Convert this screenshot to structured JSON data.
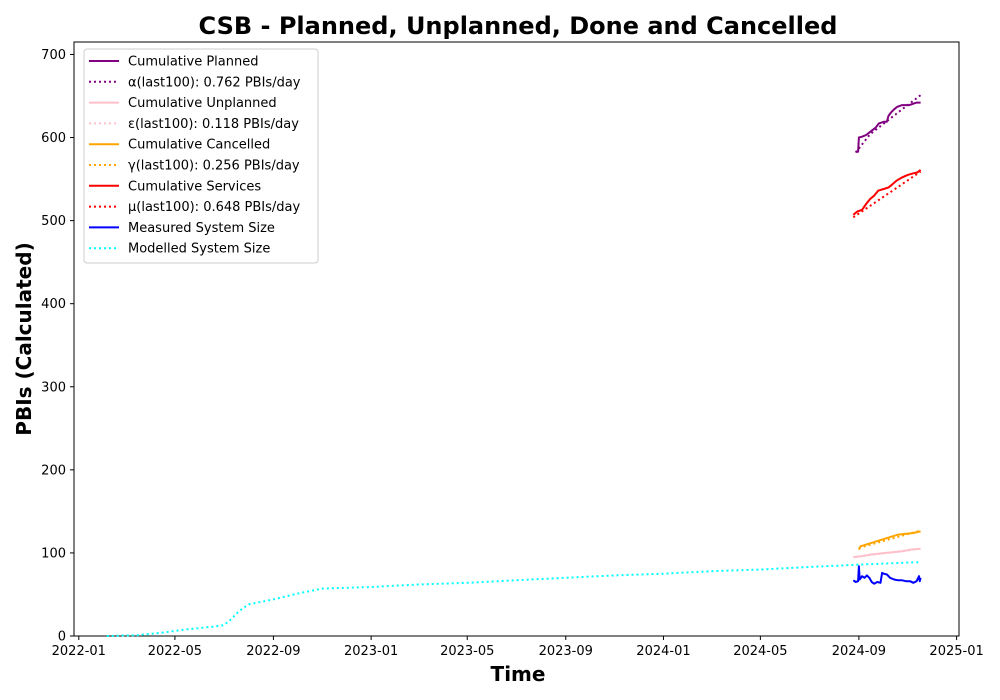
{
  "chart_data": {
    "type": "line",
    "title": "CSB - Planned, Unplanned, Done  and Cancelled",
    "xlabel": "Time",
    "ylabel": "PBIs (Calculated)",
    "x_axis": {
      "kind": "date",
      "range": [
        "2021-12-26",
        "2025-01-04"
      ],
      "ticks": [
        "2022-01",
        "2022-05",
        "2022-09",
        "2023-01",
        "2023-05",
        "2023-09",
        "2024-01",
        "2024-05",
        "2024-09",
        "2025-01"
      ]
    },
    "y_axis": {
      "range": [
        0,
        715
      ],
      "ticks": [
        0,
        100,
        200,
        300,
        400,
        500,
        600,
        700
      ]
    },
    "grid": false,
    "legend_position": "top-left",
    "series": [
      {
        "name": "Cumulative Planned",
        "color": "#800080",
        "style": "solid",
        "points": [
          [
            "2024-08-28",
            583
          ],
          [
            "2024-08-31",
            583
          ],
          [
            "2024-09-01",
            600
          ],
          [
            "2024-09-05",
            601
          ],
          [
            "2024-09-10",
            603
          ],
          [
            "2024-09-14",
            606
          ],
          [
            "2024-09-18",
            609
          ],
          [
            "2024-09-22",
            612
          ],
          [
            "2024-09-26",
            617
          ],
          [
            "2024-10-02",
            619
          ],
          [
            "2024-10-06",
            619
          ],
          [
            "2024-10-08",
            626
          ],
          [
            "2024-10-11",
            630
          ],
          [
            "2024-10-15",
            634
          ],
          [
            "2024-10-19",
            637
          ],
          [
            "2024-10-25",
            639
          ],
          [
            "2024-11-03",
            639
          ],
          [
            "2024-11-12",
            642
          ],
          [
            "2024-11-17",
            642
          ]
        ]
      },
      {
        "name": "α(last100): 0.762 PBIs/day",
        "color": "#800080",
        "style": "dotted",
        "points": [
          [
            "2024-08-28",
            582
          ],
          [
            "2024-09-15",
            604
          ],
          [
            "2024-10-05",
            619
          ],
          [
            "2024-10-25",
            634
          ],
          [
            "2024-11-17",
            651
          ]
        ]
      },
      {
        "name": "Cumulative Unplanned",
        "color": "#ffc0cb",
        "style": "solid",
        "points": [
          [
            "2024-08-25",
            95
          ],
          [
            "2024-09-05",
            96
          ],
          [
            "2024-09-15",
            98
          ],
          [
            "2024-09-25",
            99
          ],
          [
            "2024-10-05",
            100
          ],
          [
            "2024-10-15",
            101
          ],
          [
            "2024-10-25",
            102
          ],
          [
            "2024-11-05",
            104
          ],
          [
            "2024-11-17",
            105
          ]
        ]
      },
      {
        "name": "ε(last100): 0.118 PBIs/day",
        "color": "#ffc0cb",
        "style": "dotted",
        "points": [
          [
            "2024-08-25",
            95
          ],
          [
            "2024-11-17",
            105
          ]
        ]
      },
      {
        "name": "Cumulative Cancelled",
        "color": "#ffa500",
        "style": "solid",
        "points": [
          [
            "2024-09-01",
            104
          ],
          [
            "2024-09-03",
            108
          ],
          [
            "2024-09-10",
            110
          ],
          [
            "2024-09-20",
            113
          ],
          [
            "2024-09-30",
            116
          ],
          [
            "2024-10-10",
            119
          ],
          [
            "2024-10-20",
            122
          ],
          [
            "2024-10-30",
            123
          ],
          [
            "2024-11-08",
            124
          ],
          [
            "2024-11-17",
            126
          ]
        ]
      },
      {
        "name": "γ(last100): 0.256 PBIs/day",
        "color": "#ffa500",
        "style": "dotted",
        "points": [
          [
            "2024-09-01",
            106
          ],
          [
            "2024-11-17",
            127
          ]
        ]
      },
      {
        "name": "Cumulative Services",
        "color": "#ff0000",
        "style": "solid",
        "points": [
          [
            "2024-08-25",
            507
          ],
          [
            "2024-08-30",
            511
          ],
          [
            "2024-09-05",
            513
          ],
          [
            "2024-09-10",
            520
          ],
          [
            "2024-09-15",
            526
          ],
          [
            "2024-09-20",
            530
          ],
          [
            "2024-09-25",
            536
          ],
          [
            "2024-10-02",
            538
          ],
          [
            "2024-10-08",
            540
          ],
          [
            "2024-10-12",
            543
          ],
          [
            "2024-10-18",
            548
          ],
          [
            "2024-10-25",
            552
          ],
          [
            "2024-11-01",
            555
          ],
          [
            "2024-11-08",
            557
          ],
          [
            "2024-11-13",
            558
          ],
          [
            "2024-11-17",
            561
          ]
        ]
      },
      {
        "name": "μ(last100): 0.648 PBIs/day",
        "color": "#ff0000",
        "style": "dotted",
        "points": [
          [
            "2024-08-25",
            504
          ],
          [
            "2024-11-17",
            559
          ]
        ]
      },
      {
        "name": "Measured System Size",
        "color": "#0000ff",
        "style": "solid",
        "points": [
          [
            "2024-08-25",
            67
          ],
          [
            "2024-08-28",
            65
          ],
          [
            "2024-08-31",
            66
          ],
          [
            "2024-09-01",
            84
          ],
          [
            "2024-09-02",
            68
          ],
          [
            "2024-09-05",
            72
          ],
          [
            "2024-09-08",
            70
          ],
          [
            "2024-09-11",
            73
          ],
          [
            "2024-09-14",
            70
          ],
          [
            "2024-09-17",
            65
          ],
          [
            "2024-09-20",
            63
          ],
          [
            "2024-09-24",
            65
          ],
          [
            "2024-09-28",
            64
          ],
          [
            "2024-09-30",
            76
          ],
          [
            "2024-10-02",
            75
          ],
          [
            "2024-10-06",
            74
          ],
          [
            "2024-10-10",
            70
          ],
          [
            "2024-10-15",
            68
          ],
          [
            "2024-10-20",
            67
          ],
          [
            "2024-10-25",
            67
          ],
          [
            "2024-10-30",
            66
          ],
          [
            "2024-11-04",
            66
          ],
          [
            "2024-11-08",
            64
          ],
          [
            "2024-11-12",
            66
          ],
          [
            "2024-11-15",
            72
          ],
          [
            "2024-11-16",
            66
          ],
          [
            "2024-11-17",
            70
          ]
        ]
      },
      {
        "name": "Modelled System Size",
        "color": "#00ffff",
        "style": "dotted",
        "points": [
          [
            "2022-02-05",
            0
          ],
          [
            "2022-03-15",
            1
          ],
          [
            "2022-04-15",
            4
          ],
          [
            "2022-05-15",
            8
          ],
          [
            "2022-06-15",
            11
          ],
          [
            "2022-07-01",
            13
          ],
          [
            "2022-07-10",
            20
          ],
          [
            "2022-07-20",
            30
          ],
          [
            "2022-08-01",
            38
          ],
          [
            "2022-09-01",
            44
          ],
          [
            "2022-10-01",
            51
          ],
          [
            "2022-11-01",
            57
          ],
          [
            "2022-12-01",
            58
          ],
          [
            "2023-01-01",
            59
          ],
          [
            "2023-03-01",
            62
          ],
          [
            "2023-05-01",
            64
          ],
          [
            "2023-07-01",
            67
          ],
          [
            "2023-09-01",
            70
          ],
          [
            "2023-11-01",
            73
          ],
          [
            "2024-01-01",
            75
          ],
          [
            "2024-03-01",
            78
          ],
          [
            "2024-05-01",
            80
          ],
          [
            "2024-07-01",
            83
          ],
          [
            "2024-09-01",
            86
          ],
          [
            "2024-11-17",
            89
          ]
        ]
      }
    ]
  }
}
